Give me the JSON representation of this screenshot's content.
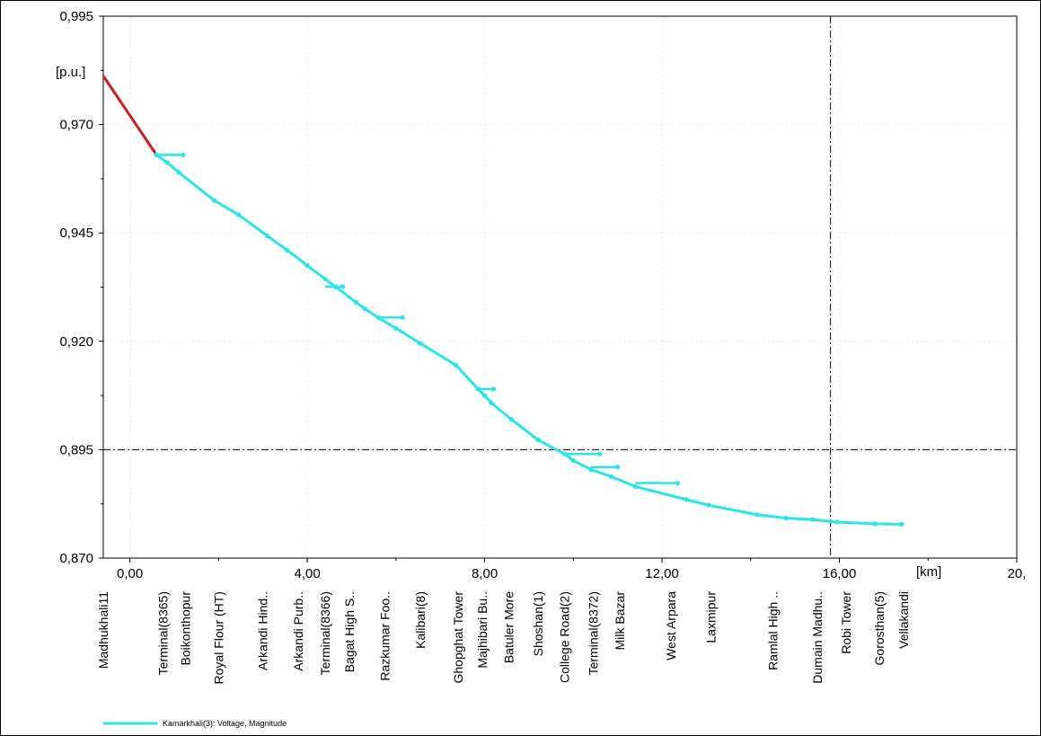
{
  "chart_data": {
    "type": "line",
    "y_unit": "[p.u.]",
    "x_unit": "[km]",
    "xlim": [
      -0.6,
      20.0
    ],
    "ylim": [
      0.87,
      0.995
    ],
    "x_ticks": [
      "0,00",
      "4,00",
      "8,00",
      "12,00",
      "16,00",
      "20,"
    ],
    "x_tick_values": [
      0,
      4,
      8,
      12,
      16,
      20
    ],
    "y_ticks": [
      "0,870",
      "0,895",
      "0,920",
      "0,945",
      "0,970",
      "0,995"
    ],
    "y_tick_values": [
      0.87,
      0.895,
      0.92,
      0.945,
      0.97,
      0.995
    ],
    "crosshair": {
      "x": 15.8,
      "y": 0.895
    },
    "categories": [
      {
        "label": "Madhukhali11",
        "x": -0.6
      },
      {
        "label": "Terminal(8365)",
        "x": 0.75
      },
      {
        "label": "Boikonthopur",
        "x": 1.25
      },
      {
        "label": "Royal Flour (HT)",
        "x": 2.0
      },
      {
        "label": "Arkandi Hind..",
        "x": 3.0
      },
      {
        "label": "Arkandi Purb..",
        "x": 3.8
      },
      {
        "label": "Terminal(8366)",
        "x": 4.4
      },
      {
        "label": "Bagat High S..",
        "x": 4.95
      },
      {
        "label": "Razkumar Foo..",
        "x": 5.75
      },
      {
        "label": "Kalibari(8)",
        "x": 6.55
      },
      {
        "label": "Ghopghat Tower",
        "x": 7.4
      },
      {
        "label": "Majhibari Bu..",
        "x": 7.95
      },
      {
        "label": "Batuler More",
        "x": 8.55
      },
      {
        "label": "Shoshan(1)",
        "x": 9.2
      },
      {
        "label": "College Road(2)",
        "x": 9.8
      },
      {
        "label": "Terminal(8372)",
        "x": 10.45
      },
      {
        "label": "Milk Bazar",
        "x": 11.05
      },
      {
        "label": "West Arpara",
        "x": 12.2
      },
      {
        "label": "Laxmipur",
        "x": 13.1
      },
      {
        "label": "Ramlal High ..",
        "x": 14.5
      },
      {
        "label": "Dumain Madhu..",
        "x": 15.5
      },
      {
        "label": "Robi Tower",
        "x": 16.15
      },
      {
        "label": "Gorosthan(5)",
        "x": 16.9
      },
      {
        "label": "Vellakandi",
        "x": 17.45
      }
    ],
    "series": [
      {
        "name": "Kamarkhali(3): Voltage, Magnitude",
        "color": "#29e5eb",
        "lead_color": "#cc1f1f",
        "lead_segment": [
          [
            -0.6,
            0.9812
          ],
          [
            0.6,
            0.963
          ]
        ],
        "points": [
          [
            0.6,
            0.963
          ],
          [
            0.85,
            0.9612
          ],
          [
            1.1,
            0.959
          ],
          [
            1.9,
            0.9525
          ],
          [
            2.45,
            0.9492
          ],
          [
            3.1,
            0.9443
          ],
          [
            3.55,
            0.941
          ],
          [
            4.0,
            0.9375
          ],
          [
            4.4,
            0.9344
          ],
          [
            4.65,
            0.9325
          ],
          [
            5.1,
            0.929
          ],
          [
            5.3,
            0.9275
          ],
          [
            5.6,
            0.9255
          ],
          [
            6.0,
            0.923
          ],
          [
            6.55,
            0.9195
          ],
          [
            7.35,
            0.9145
          ],
          [
            7.85,
            0.909
          ],
          [
            8.0,
            0.9075
          ],
          [
            8.15,
            0.9058
          ],
          [
            8.6,
            0.902
          ],
          [
            9.2,
            0.8973
          ],
          [
            9.8,
            0.894
          ],
          [
            10.0,
            0.8925
          ],
          [
            10.4,
            0.8904
          ],
          [
            10.85,
            0.8888
          ],
          [
            11.4,
            0.8865
          ],
          [
            12.55,
            0.8835
          ],
          [
            13.05,
            0.8822
          ],
          [
            14.15,
            0.88
          ],
          [
            14.8,
            0.8792
          ],
          [
            15.4,
            0.8789
          ],
          [
            15.95,
            0.8783
          ],
          [
            16.8,
            0.8779
          ],
          [
            17.4,
            0.8778
          ]
        ],
        "branches": [
          [
            [
              0.6,
              0.963
            ],
            [
              1.2,
              0.963
            ]
          ],
          [
            [
              4.4,
              0.9326
            ],
            [
              4.8,
              0.9326
            ]
          ],
          [
            [
              5.6,
              0.9255
            ],
            [
              6.15,
              0.9255
            ]
          ],
          [
            [
              7.85,
              0.909
            ],
            [
              8.2,
              0.909
            ]
          ],
          [
            [
              9.8,
              0.894
            ],
            [
              10.6,
              0.894
            ]
          ],
          [
            [
              10.4,
              0.891
            ],
            [
              11.0,
              0.891
            ]
          ],
          [
            [
              11.4,
              0.8873
            ],
            [
              12.35,
              0.8873
            ]
          ]
        ]
      }
    ],
    "legend": {
      "label": "Kamarkhali(3): Voltage, Magnitude",
      "placement": "bottom-left"
    }
  }
}
